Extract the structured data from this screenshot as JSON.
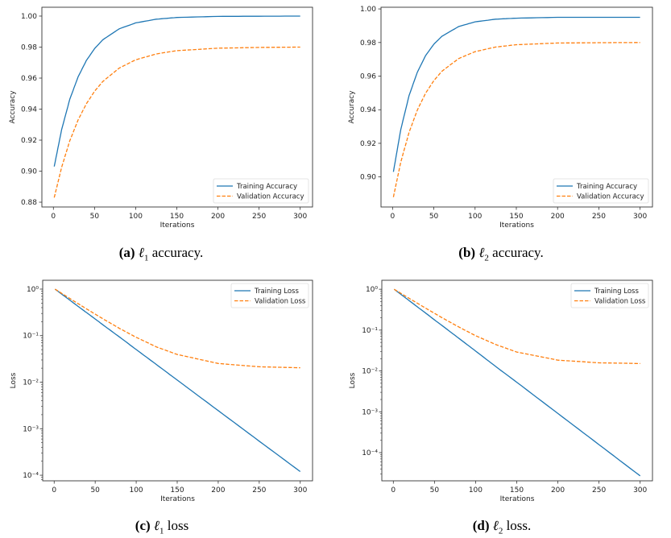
{
  "colors": {
    "training": "#1f77b4",
    "validation": "#ff7f0e"
  },
  "chart_data": [
    {
      "id": "a",
      "type": "line",
      "yscale": "linear",
      "xlabel": "Iterations",
      "ylabel": "Accuracy",
      "xlim": [
        -14,
        315
      ],
      "ylim": [
        0.8769,
        1.0057
      ],
      "xticks": [
        0,
        50,
        100,
        150,
        200,
        250,
        300
      ],
      "yticks": [
        0.88,
        0.9,
        0.92,
        0.94,
        0.96,
        0.98,
        1.0
      ],
      "ytick_labels": [
        "0.88",
        "0.90",
        "0.92",
        "0.94",
        "0.96",
        "0.98",
        "1.00"
      ],
      "legend": "lower-right",
      "caption": {
        "label": "(a)",
        "symbol": "ℓ",
        "sub": "1",
        "text": " accuracy."
      },
      "x": [
        1,
        10,
        20,
        30,
        40,
        50,
        60,
        80,
        100,
        125,
        150,
        200,
        250,
        300
      ],
      "series": [
        {
          "name": "Training Accuracy",
          "style": "solid",
          "values": [
            0.903,
            0.9268,
            0.9465,
            0.9608,
            0.9713,
            0.979,
            0.9847,
            0.9918,
            0.9956,
            0.998,
            0.9991,
            0.9998,
            0.9999,
            1.0
          ]
        },
        {
          "name": "Validation Accuracy",
          "style": "dashed",
          "values": [
            0.883,
            0.9025,
            0.9197,
            0.933,
            0.9434,
            0.9515,
            0.9578,
            0.9665,
            0.9718,
            0.9756,
            0.9777,
            0.9793,
            0.9798,
            0.98
          ]
        }
      ]
    },
    {
      "id": "b",
      "type": "line",
      "yscale": "linear",
      "xlabel": "Iterations",
      "ylabel": "Accuracy",
      "xlim": [
        -14,
        315
      ],
      "ylim": [
        0.8821,
        1.001
      ],
      "xticks": [
        0,
        50,
        100,
        150,
        200,
        250,
        300
      ],
      "yticks": [
        0.9,
        0.92,
        0.94,
        0.96,
        0.98,
        1.0
      ],
      "ytick_labels": [
        "0.90",
        "0.92",
        "0.94",
        "0.96",
        "0.98",
        "1.00"
      ],
      "legend": "lower-right",
      "caption": {
        "label": "(b)",
        "symbol": "ℓ",
        "sub": "2",
        "text": " accuracy."
      },
      "x": [
        1,
        10,
        20,
        30,
        40,
        50,
        60,
        80,
        100,
        125,
        150,
        200,
        250,
        300
      ],
      "series": [
        {
          "name": "Training Accuracy",
          "style": "solid",
          "values": [
            0.903,
            0.9283,
            0.9484,
            0.9623,
            0.9722,
            0.979,
            0.9838,
            0.9895,
            0.9923,
            0.9939,
            0.9945,
            0.995,
            0.995,
            0.995
          ]
        },
        {
          "name": "Validation Accuracy",
          "style": "dashed",
          "values": [
            0.888,
            0.9089,
            0.9265,
            0.9398,
            0.9498,
            0.9573,
            0.963,
            0.9704,
            0.9746,
            0.9773,
            0.9787,
            0.9797,
            0.9799,
            0.98
          ]
        }
      ]
    },
    {
      "id": "c",
      "type": "line",
      "yscale": "log",
      "xlabel": "Iterations",
      "ylabel": "Loss",
      "xlim": [
        -14,
        315
      ],
      "ylim_log10": [
        -4.12,
        0.19
      ],
      "xticks": [
        0,
        50,
        100,
        150,
        200,
        250,
        300
      ],
      "yticks_exp": [
        0,
        -1,
        -2,
        -3,
        -4
      ],
      "ytick_labels": [
        "10⁰",
        "10⁻¹",
        "10⁻²",
        "10⁻³",
        "10⁻⁴"
      ],
      "legend": "upper-right",
      "caption": {
        "label": "(c)",
        "symbol": "ℓ",
        "sub": "1",
        "text": " loss"
      },
      "x": [
        1,
        10,
        20,
        30,
        40,
        50,
        60,
        80,
        100,
        125,
        150,
        200,
        250,
        300
      ],
      "series": [
        {
          "name": "Training Loss",
          "style": "solid",
          "values": [
            1.0,
            0.762,
            0.563,
            0.415,
            0.308,
            0.228,
            0.168,
            0.0925,
            0.0503,
            0.0237,
            0.0111,
            0.00245,
            0.00054,
            0.00012
          ]
        },
        {
          "name": "Validation Loss",
          "style": "dashed",
          "values": [
            1.0,
            0.793,
            0.615,
            0.477,
            0.371,
            0.29,
            0.227,
            0.142,
            0.092,
            0.057,
            0.0394,
            0.0252,
            0.0214,
            0.0204
          ]
        }
      ]
    },
    {
      "id": "d",
      "type": "line",
      "yscale": "log",
      "xlabel": "Iterations",
      "ylabel": "Loss",
      "xlim": [
        -14,
        315
      ],
      "ylim_log10": [
        -4.69,
        0.22
      ],
      "xticks": [
        0,
        50,
        100,
        150,
        200,
        250,
        300
      ],
      "yticks_exp": [
        0,
        -1,
        -2,
        -3,
        -4
      ],
      "ytick_labels": [
        "10⁰",
        "10⁻¹",
        "10⁻²",
        "10⁻³",
        "10⁻⁴"
      ],
      "legend": "upper-right",
      "caption": {
        "label": "(d)",
        "symbol": "ℓ",
        "sub": "2",
        "text": " loss."
      },
      "x": [
        1,
        10,
        20,
        30,
        40,
        50,
        60,
        80,
        100,
        125,
        150,
        200,
        250,
        300
      ],
      "series": [
        {
          "name": "Training Loss",
          "style": "solid",
          "values": [
            1.0,
            0.729,
            0.514,
            0.361,
            0.255,
            0.178,
            0.126,
            0.0622,
            0.0307,
            0.0126,
            0.0053,
            0.00091,
            0.000157,
            2.7e-05
          ]
        },
        {
          "name": "Validation Loss",
          "style": "dashed",
          "values": [
            1.0,
            0.776,
            0.587,
            0.445,
            0.338,
            0.258,
            0.197,
            0.118,
            0.073,
            0.044,
            0.029,
            0.0184,
            0.0158,
            0.0152
          ]
        }
      ]
    }
  ]
}
